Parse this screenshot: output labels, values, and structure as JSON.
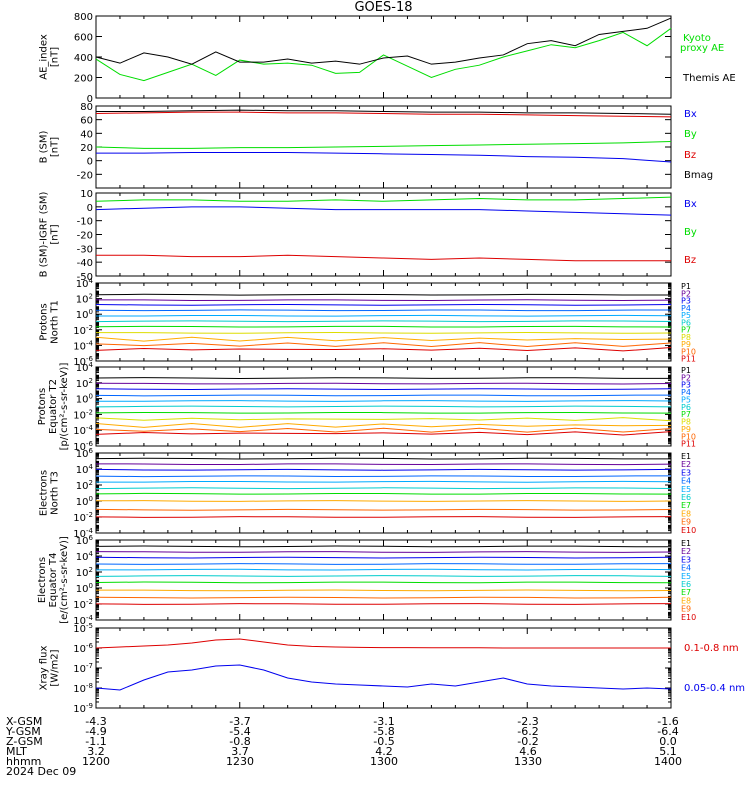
{
  "title": "GOES-18",
  "colors": {
    "black": "#000000",
    "green": "#00dd00",
    "blue": "#0000ee",
    "red": "#dd0000"
  },
  "chart_data": [
    {
      "type": "line",
      "ylabel": [
        "AE_index",
        "[nT]"
      ],
      "ylim": [
        0,
        800
      ],
      "yticks": [
        0,
        200,
        400,
        600,
        800
      ],
      "ytick_labels": [
        "0",
        "200",
        "400",
        "600",
        "800"
      ],
      "scale": "linear",
      "x": [
        1200,
        1205,
        1210,
        1215,
        1220,
        1225,
        1230,
        1235,
        1240,
        1245,
        1250,
        1255,
        1300,
        1305,
        1310,
        1315,
        1320,
        1325,
        1330,
        1335,
        1340,
        1345,
        1350,
        1355,
        1400
      ],
      "series": [
        {
          "name": "Kyoto",
          "name2": "proxy AE",
          "color": "#00dd00",
          "values": [
            380,
            230,
            170,
            250,
            330,
            220,
            370,
            330,
            340,
            320,
            240,
            250,
            420,
            310,
            200,
            280,
            320,
            400,
            460,
            520,
            490,
            560,
            640,
            510,
            680
          ]
        },
        {
          "name": "Themis AE",
          "color": "#000000",
          "values": [
            400,
            340,
            440,
            400,
            330,
            450,
            350,
            350,
            380,
            340,
            360,
            330,
            390,
            410,
            330,
            350,
            390,
            420,
            530,
            560,
            510,
            620,
            650,
            680,
            780
          ]
        }
      ]
    },
    {
      "type": "line",
      "ylabel": [
        "B (SM)",
        "[nT]"
      ],
      "ylim": [
        -40,
        80
      ],
      "yticks": [
        -20,
        0,
        20,
        40,
        60,
        80
      ],
      "ytick_labels": [
        "-20",
        "0",
        "20",
        "40",
        "60",
        "80"
      ],
      "scale": "linear",
      "x": [
        1200,
        1210,
        1220,
        1230,
        1240,
        1250,
        1300,
        1310,
        1320,
        1330,
        1340,
        1350,
        1400
      ],
      "series": [
        {
          "name": "Bx",
          "color": "#0000ee",
          "values": [
            11,
            11,
            12,
            12,
            12,
            11,
            10,
            9,
            8,
            6,
            5,
            3,
            -2
          ]
        },
        {
          "name": "By",
          "color": "#00dd00",
          "values": [
            20,
            18,
            18,
            19,
            19,
            20,
            21,
            22,
            23,
            24,
            25,
            26,
            28
          ]
        },
        {
          "name": "Bz",
          "color": "#dd0000",
          "values": [
            69,
            70,
            71,
            71,
            70,
            70,
            69,
            68,
            68,
            67,
            66,
            65,
            64
          ]
        },
        {
          "name": "Bmag",
          "color": "#000000",
          "values": [
            72,
            72,
            73,
            74,
            73,
            73,
            72,
            71,
            71,
            70,
            70,
            69,
            68
          ]
        }
      ]
    },
    {
      "type": "line",
      "ylabel": [
        "B (SM)-IGRF (SM)",
        "[nT]"
      ],
      "ylim": [
        -50,
        10
      ],
      "yticks": [
        -50,
        -40,
        -30,
        -20,
        -10,
        0,
        10
      ],
      "ytick_labels": [
        "-50",
        "-40",
        "-30",
        "-20",
        "-10",
        "0",
        "10"
      ],
      "scale": "linear",
      "x": [
        1200,
        1210,
        1220,
        1230,
        1240,
        1250,
        1300,
        1310,
        1320,
        1330,
        1340,
        1350,
        1400
      ],
      "series": [
        {
          "name": "Bx",
          "color": "#0000ee",
          "values": [
            -2,
            -1,
            0,
            0,
            -1,
            -2,
            -2,
            -2,
            -2,
            -3,
            -4,
            -5,
            -6
          ]
        },
        {
          "name": "By",
          "color": "#00dd00",
          "values": [
            4,
            5,
            5,
            4,
            4,
            5,
            4,
            5,
            6,
            5,
            5,
            6,
            7
          ]
        },
        {
          "name": "Bz",
          "color": "#dd0000",
          "values": [
            -35,
            -35,
            -36,
            -36,
            -35,
            -36,
            -37,
            -38,
            -37,
            -38,
            -39,
            -39,
            -39
          ]
        }
      ]
    },
    {
      "type": "line",
      "ylabel": [
        "Protons",
        "North T1"
      ],
      "ylim": [
        -6,
        4
      ],
      "yticks": [
        -6,
        -4,
        -2,
        0,
        2,
        4
      ],
      "ytick_labels": [
        "10^-6",
        "10^-4",
        "10^-2",
        "10^0",
        "10^2",
        "10^4"
      ],
      "scale": "log",
      "series_levels": [
        {
          "name": "P1",
          "color": "#000000",
          "log10": 2.5
        },
        {
          "name": "P2",
          "color": "#660099",
          "log10": 1.8
        },
        {
          "name": "P3",
          "color": "#0000ee",
          "log10": 1.2
        },
        {
          "name": "P4",
          "color": "#0066ff",
          "log10": 0.5
        },
        {
          "name": "P5",
          "color": "#00aaff",
          "log10": -0.2
        },
        {
          "name": "P6",
          "color": "#00cccc",
          "log10": -0.9
        },
        {
          "name": "P7",
          "color": "#00dd00",
          "log10": -1.6
        },
        {
          "name": "P8",
          "color": "#dddd00",
          "log10": -2.4
        },
        {
          "name": "P9",
          "color": "#ffaa00",
          "log10": -3.2
        },
        {
          "name": "P10",
          "color": "#ff6600",
          "log10": -3.9
        },
        {
          "name": "P11",
          "color": "#dd0000",
          "log10": -4.5
        }
      ]
    },
    {
      "type": "line",
      "ylabel": [
        "Protons",
        "Equator T2",
        "[p/(cm²-s-sr-keV)]"
      ],
      "ylim": [
        -6,
        4
      ],
      "yticks": [
        -6,
        -4,
        -2,
        0,
        2,
        4
      ],
      "ytick_labels": [
        "10^-6",
        "10^-4",
        "10^-2",
        "10^0",
        "10^2",
        "10^4"
      ],
      "scale": "log",
      "series_levels": [
        {
          "name": "P1",
          "color": "#000000",
          "log10": 2.6
        },
        {
          "name": "P2",
          "color": "#660099",
          "log10": 1.9
        },
        {
          "name": "P3",
          "color": "#0000ee",
          "log10": 1.2
        },
        {
          "name": "P4",
          "color": "#0066ff",
          "log10": 0.4
        },
        {
          "name": "P5",
          "color": "#00aaff",
          "log10": -0.3
        },
        {
          "name": "P6",
          "color": "#00cccc",
          "log10": -1.0
        },
        {
          "name": "P7",
          "color": "#00dd00",
          "log10": -1.8
        },
        {
          "name": "P8",
          "color": "#dddd00",
          "log10": -2.6
        },
        {
          "name": "P9",
          "color": "#ffaa00",
          "log10": -3.4
        },
        {
          "name": "P10",
          "color": "#ff6600",
          "log10": -4.0
        },
        {
          "name": "P11",
          "color": "#dd0000",
          "log10": -4.4
        }
      ]
    },
    {
      "type": "line",
      "ylabel": [
        "Electrons",
        "North T3"
      ],
      "ylim": [
        -4,
        6
      ],
      "yticks": [
        -4,
        -2,
        0,
        2,
        4,
        6
      ],
      "ytick_labels": [
        "10^-4",
        "10^-2",
        "10^0",
        "10^2",
        "10^4",
        "10^6"
      ],
      "scale": "log",
      "series_levels": [
        {
          "name": "E1",
          "color": "#000000",
          "log10": 5.3
        },
        {
          "name": "E2",
          "color": "#660099",
          "log10": 4.6
        },
        {
          "name": "E3",
          "color": "#0000ee",
          "log10": 3.9
        },
        {
          "name": "E4",
          "color": "#0066ff",
          "log10": 3.1
        },
        {
          "name": "E5",
          "color": "#00aaff",
          "log10": 2.4
        },
        {
          "name": "E6",
          "color": "#00cccc",
          "log10": 1.6
        },
        {
          "name": "E7",
          "color": "#00dd00",
          "log10": 0.9
        },
        {
          "name": "E8",
          "color": "#ffaa00",
          "log10": 0.0
        },
        {
          "name": "E9",
          "color": "#ff6600",
          "log10": -1.1
        },
        {
          "name": "E10",
          "color": "#dd0000",
          "log10": -2.0
        }
      ]
    },
    {
      "type": "line",
      "ylabel": [
        "Electrons",
        "Equator T4",
        "[e/(cm²-s-sr-keV)]"
      ],
      "ylim": [
        -4,
        6
      ],
      "yticks": [
        -4,
        -2,
        0,
        2,
        4,
        6
      ],
      "ytick_labels": [
        "10^-4",
        "10^-2",
        "10^0",
        "10^2",
        "10^4",
        "10^6"
      ],
      "scale": "log",
      "series_levels": [
        {
          "name": "E1",
          "color": "#000000",
          "log10": 5.2
        },
        {
          "name": "E2",
          "color": "#660099",
          "log10": 4.5
        },
        {
          "name": "E3",
          "color": "#0000ee",
          "log10": 3.8
        },
        {
          "name": "E4",
          "color": "#0066ff",
          "log10": 3.0
        },
        {
          "name": "E5",
          "color": "#00aaff",
          "log10": 2.3
        },
        {
          "name": "E6",
          "color": "#00cccc",
          "log10": 1.5
        },
        {
          "name": "E7",
          "color": "#00dd00",
          "log10": 0.7
        },
        {
          "name": "E8",
          "color": "#ffaa00",
          "log10": -0.3
        },
        {
          "name": "E9",
          "color": "#ff6600",
          "log10": -1.2
        },
        {
          "name": "E10",
          "color": "#dd0000",
          "log10": -2.0
        }
      ]
    },
    {
      "type": "line",
      "ylabel": [
        "Xray flux",
        "[W/m2]"
      ],
      "ylim": [
        -9,
        -5
      ],
      "yticks": [
        -9,
        -8,
        -7,
        -6,
        -5
      ],
      "ytick_labels": [
        "10^-9",
        "10^-8",
        "10^-7",
        "10^-6",
        "10^-5"
      ],
      "scale": "log",
      "x": [
        1200,
        1205,
        1210,
        1215,
        1220,
        1225,
        1230,
        1235,
        1240,
        1245,
        1250,
        1255,
        1300,
        1305,
        1310,
        1315,
        1320,
        1325,
        1330,
        1335,
        1340,
        1345,
        1350,
        1355,
        1400
      ],
      "series": [
        {
          "name": "0.1-0.8 nm",
          "color": "#dd0000",
          "values": [
            -6.0,
            -5.95,
            -5.9,
            -5.85,
            -5.75,
            -5.6,
            -5.55,
            -5.7,
            -5.85,
            -5.92,
            -5.95,
            -5.97,
            -5.98,
            -5.98,
            -5.99,
            -5.99,
            -5.99,
            -6.0,
            -6.0,
            -6.0,
            -6.0,
            -6.0,
            -6.0,
            -6.0,
            -6.0
          ]
        },
        {
          "name": "0.05-0.4 nm",
          "color": "#0000ee",
          "values": [
            -8.0,
            -8.1,
            -7.6,
            -7.2,
            -7.1,
            -6.9,
            -6.85,
            -7.1,
            -7.5,
            -7.7,
            -7.8,
            -7.85,
            -7.9,
            -7.95,
            -7.8,
            -7.9,
            -7.7,
            -7.5,
            -7.8,
            -7.9,
            -7.95,
            -8.0,
            -8.05,
            -8.0,
            -8.05
          ]
        }
      ]
    }
  ],
  "footer": {
    "rows": [
      {
        "label": "X-GSM",
        "values": [
          "-4.3",
          "-3.7",
          "-3.1",
          "-2.3",
          "-1.6"
        ]
      },
      {
        "label": "Y-GSM",
        "values": [
          "-4.9",
          "-5.4",
          "-5.8",
          "-6.2",
          "-6.4"
        ]
      },
      {
        "label": "Z-GSM",
        "values": [
          "-1.1",
          "-0.8",
          "-0.5",
          "-0.2",
          "0.0"
        ]
      },
      {
        "label": "MLT",
        "values": [
          "3.2",
          "3.7",
          "4.2",
          "4.6",
          "5.1"
        ]
      },
      {
        "label": "hhmm",
        "values": [
          "1200",
          "1230",
          "1300",
          "1330",
          "1400"
        ]
      }
    ],
    "date": "2024 Dec 09"
  }
}
